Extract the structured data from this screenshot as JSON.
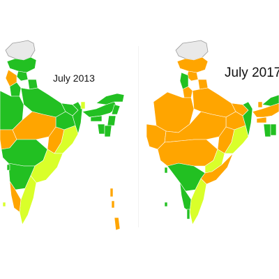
{
  "panels": [
    {
      "label": "July 2013"
    },
    {
      "label": "July 2017"
    }
  ],
  "colors": {
    "green": "#22c022",
    "orange": "#ffa500",
    "lime": "#d9ff2a",
    "pok": "#e9e9e9",
    "pok_stroke": "#9a9a9a",
    "border": "#ffffff"
  }
}
